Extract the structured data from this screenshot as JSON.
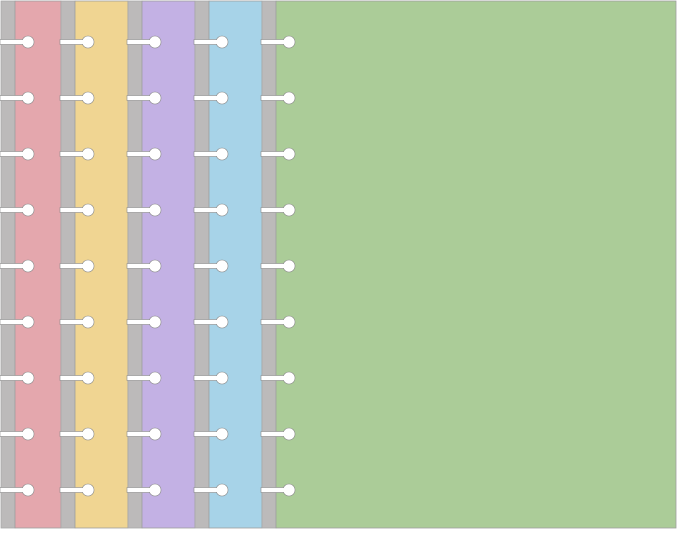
{
  "panels": [
    {
      "color": "#e4a7ad"
    },
    {
      "color": "#f0d592"
    },
    {
      "color": "#c3b1e4"
    },
    {
      "color": "#a7d3e8"
    },
    {
      "color": "#abcc98"
    }
  ],
  "spine_color": "#bcbaba"
}
